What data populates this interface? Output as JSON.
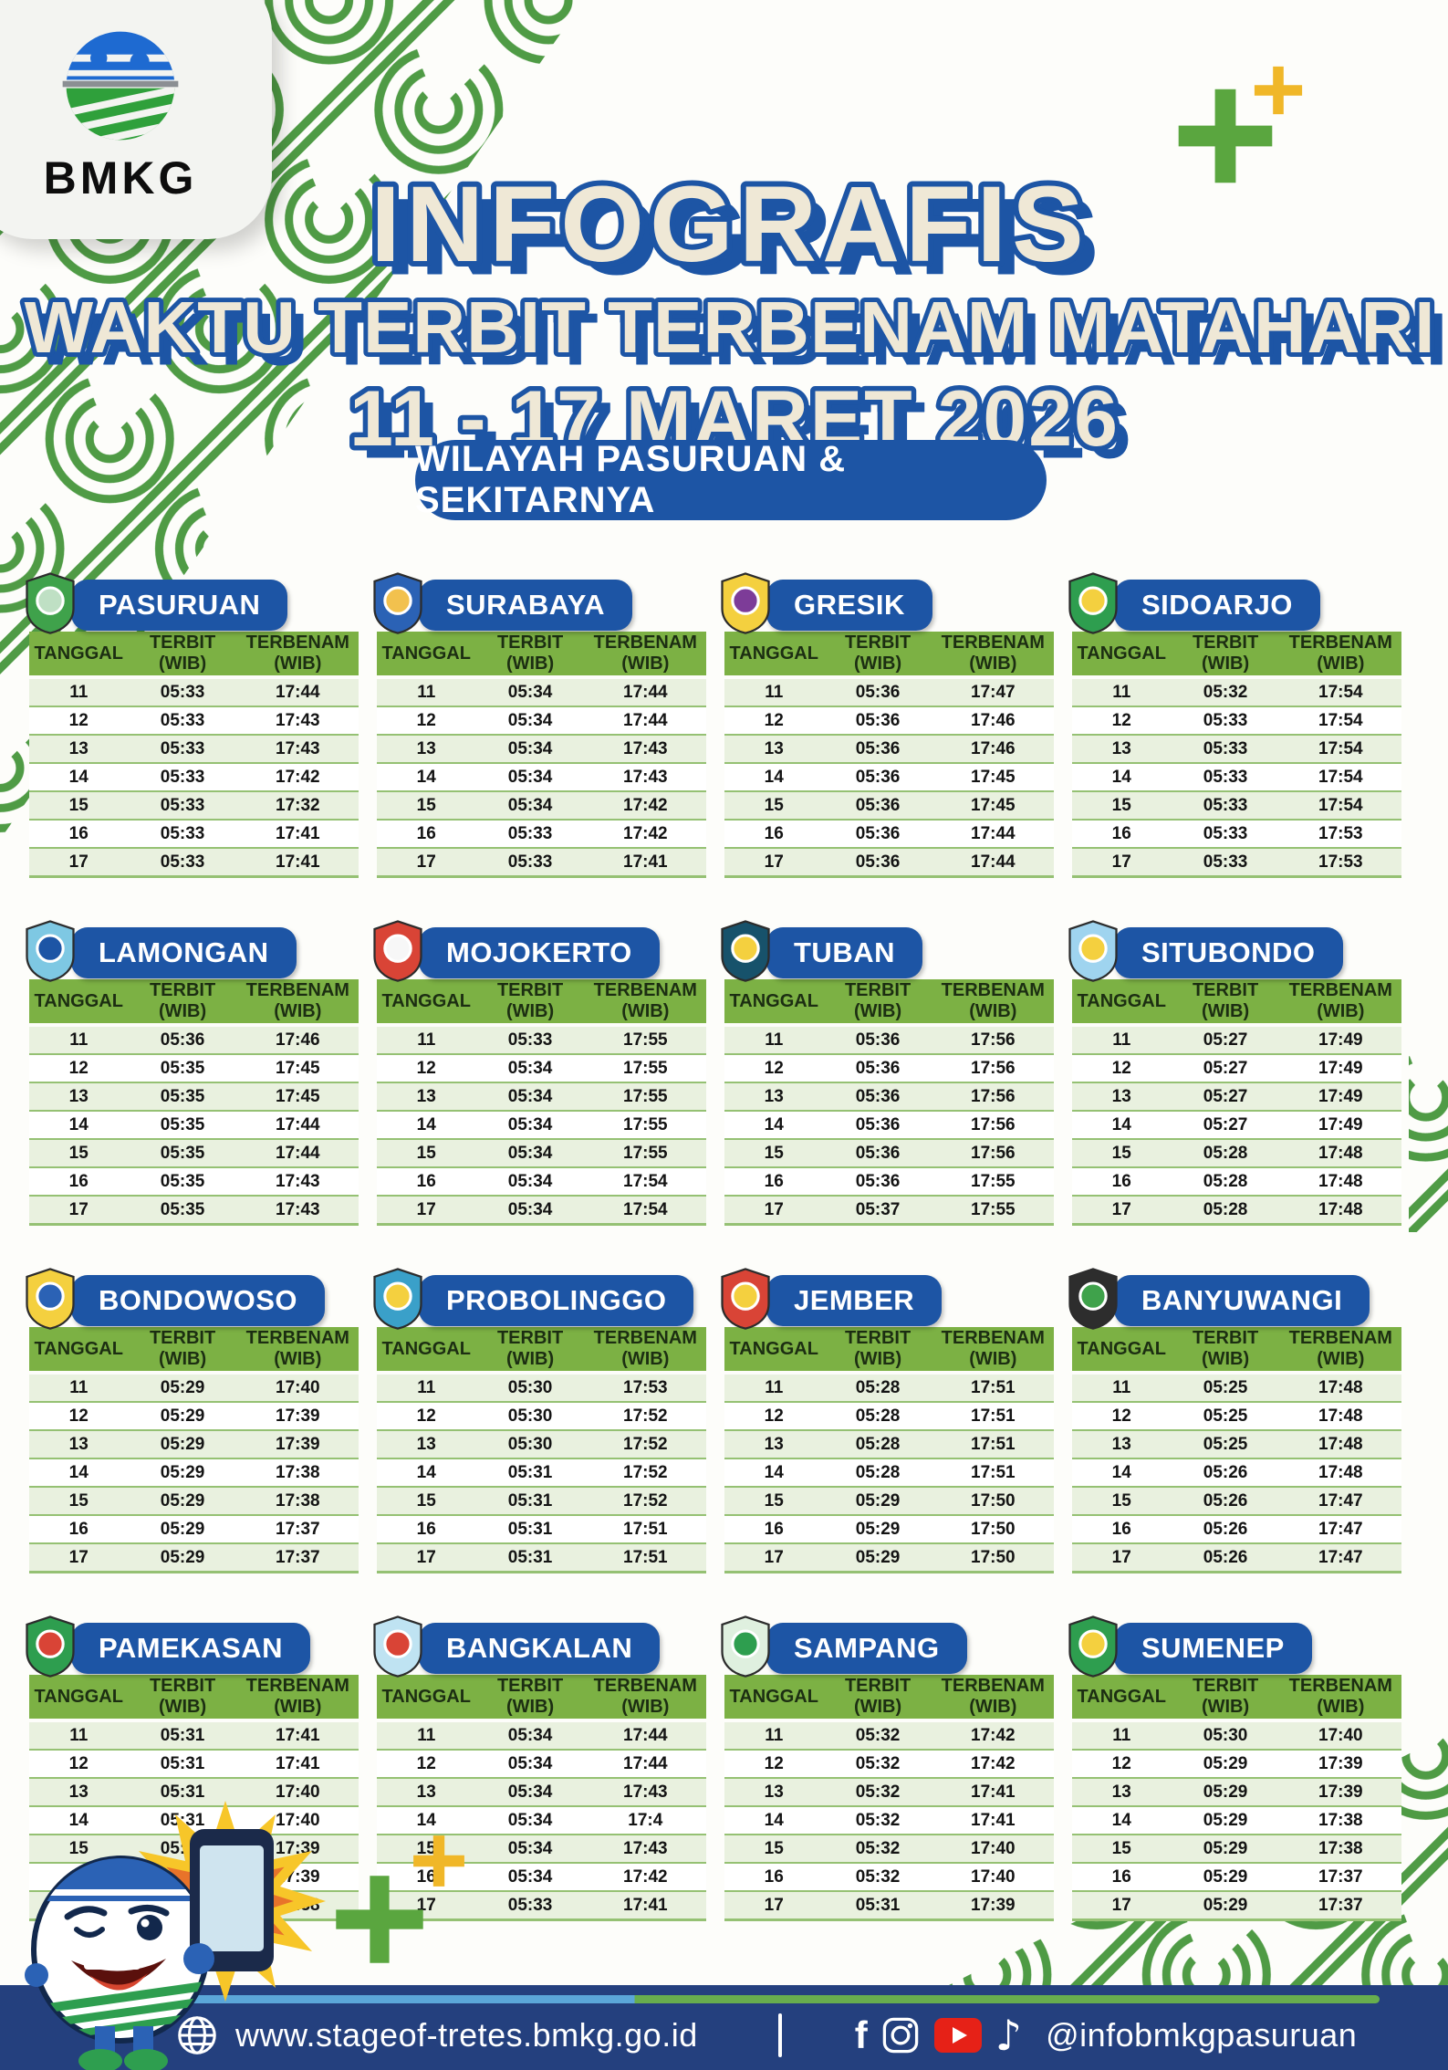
{
  "brand": {
    "logo_text": "BMKG"
  },
  "title": {
    "line1": "INFOGRAFIS",
    "line2": "WAKTU TERBIT TERBENAM MATAHARI",
    "line3": "11 - 17 MARET 2026",
    "subtitle_pill": "WILAYAH PASURUAN & SEKITARNYA"
  },
  "table_headers": {
    "date": "TANGGAL",
    "rise": "TERBIT (WIB)",
    "set": "TERBENAM (WIB)"
  },
  "cities": [
    {
      "name": "PASURUAN",
      "crest_colors": [
        "#3fa24b",
        "#bfe0c4"
      ],
      "rows": [
        [
          "11",
          "05:33",
          "17:44"
        ],
        [
          "12",
          "05:33",
          "17:43"
        ],
        [
          "13",
          "05:33",
          "17:43"
        ],
        [
          "14",
          "05:33",
          "17:42"
        ],
        [
          "15",
          "05:33",
          "17:32"
        ],
        [
          "16",
          "05:33",
          "17:41"
        ],
        [
          "17",
          "05:33",
          "17:41"
        ]
      ]
    },
    {
      "name": "SURABAYA",
      "crest_colors": [
        "#2b62b5",
        "#f2c14e"
      ],
      "rows": [
        [
          "11",
          "05:34",
          "17:44"
        ],
        [
          "12",
          "05:34",
          "17:44"
        ],
        [
          "13",
          "05:34",
          "17:43"
        ],
        [
          "14",
          "05:34",
          "17:43"
        ],
        [
          "15",
          "05:34",
          "17:42"
        ],
        [
          "16",
          "05:33",
          "17:42"
        ],
        [
          "17",
          "05:33",
          "17:41"
        ]
      ]
    },
    {
      "name": "GRESIK",
      "crest_colors": [
        "#f4d03f",
        "#7d3c98"
      ],
      "rows": [
        [
          "11",
          "05:36",
          "17:47"
        ],
        [
          "12",
          "05:36",
          "17:46"
        ],
        [
          "13",
          "05:36",
          "17:46"
        ],
        [
          "14",
          "05:36",
          "17:45"
        ],
        [
          "15",
          "05:36",
          "17:45"
        ],
        [
          "16",
          "05:36",
          "17:44"
        ],
        [
          "17",
          "05:36",
          "17:44"
        ]
      ]
    },
    {
      "name": "SIDOARJO",
      "crest_colors": [
        "#2e9e4f",
        "#f4d03f"
      ],
      "rows": [
        [
          "11",
          "05:32",
          "17:54"
        ],
        [
          "12",
          "05:33",
          "17:54"
        ],
        [
          "13",
          "05:33",
          "17:54"
        ],
        [
          "14",
          "05:33",
          "17:54"
        ],
        [
          "15",
          "05:33",
          "17:54"
        ],
        [
          "16",
          "05:33",
          "17:53"
        ],
        [
          "17",
          "05:33",
          "17:53"
        ]
      ]
    },
    {
      "name": "LAMONGAN",
      "crest_colors": [
        "#7ec8e3",
        "#1d55a5"
      ],
      "rows": [
        [
          "11",
          "05:36",
          "17:46"
        ],
        [
          "12",
          "05:35",
          "17:45"
        ],
        [
          "13",
          "05:35",
          "17:45"
        ],
        [
          "14",
          "05:35",
          "17:44"
        ],
        [
          "15",
          "05:35",
          "17:44"
        ],
        [
          "16",
          "05:35",
          "17:43"
        ],
        [
          "17",
          "05:35",
          "17:43"
        ]
      ]
    },
    {
      "name": "MOJOKERTO",
      "crest_colors": [
        "#d94436",
        "#f7f7f7"
      ],
      "rows": [
        [
          "11",
          "05:33",
          "17:55"
        ],
        [
          "12",
          "05:34",
          "17:55"
        ],
        [
          "13",
          "05:34",
          "17:55"
        ],
        [
          "14",
          "05:34",
          "17:55"
        ],
        [
          "15",
          "05:34",
          "17:55"
        ],
        [
          "16",
          "05:34",
          "17:54"
        ],
        [
          "17",
          "05:34",
          "17:54"
        ]
      ]
    },
    {
      "name": "TUBAN",
      "crest_colors": [
        "#17526b",
        "#f4d03f"
      ],
      "rows": [
        [
          "11",
          "05:36",
          "17:56"
        ],
        [
          "12",
          "05:36",
          "17:56"
        ],
        [
          "13",
          "05:36",
          "17:56"
        ],
        [
          "14",
          "05:36",
          "17:56"
        ],
        [
          "15",
          "05:36",
          "17:56"
        ],
        [
          "16",
          "05:36",
          "17:55"
        ],
        [
          "17",
          "05:37",
          "17:55"
        ]
      ]
    },
    {
      "name": "SITUBONDO",
      "crest_colors": [
        "#9fd4ef",
        "#f4d03f"
      ],
      "rows": [
        [
          "11",
          "05:27",
          "17:49"
        ],
        [
          "12",
          "05:27",
          "17:49"
        ],
        [
          "13",
          "05:27",
          "17:49"
        ],
        [
          "14",
          "05:27",
          "17:49"
        ],
        [
          "15",
          "05:28",
          "17:48"
        ],
        [
          "16",
          "05:28",
          "17:48"
        ],
        [
          "17",
          "05:28",
          "17:48"
        ]
      ]
    },
    {
      "name": "BONDOWOSO",
      "crest_colors": [
        "#f4d03f",
        "#2b62b5"
      ],
      "rows": [
        [
          "11",
          "05:29",
          "17:40"
        ],
        [
          "12",
          "05:29",
          "17:39"
        ],
        [
          "13",
          "05:29",
          "17:39"
        ],
        [
          "14",
          "05:29",
          "17:38"
        ],
        [
          "15",
          "05:29",
          "17:38"
        ],
        [
          "16",
          "05:29",
          "17:37"
        ],
        [
          "17",
          "05:29",
          "17:37"
        ]
      ]
    },
    {
      "name": "PROBOLINGGO",
      "crest_colors": [
        "#3aa0c9",
        "#f4d03f"
      ],
      "rows": [
        [
          "11",
          "05:30",
          "17:53"
        ],
        [
          "12",
          "05:30",
          "17:52"
        ],
        [
          "13",
          "05:30",
          "17:52"
        ],
        [
          "14",
          "05:31",
          "17:52"
        ],
        [
          "15",
          "05:31",
          "17:52"
        ],
        [
          "16",
          "05:31",
          "17:51"
        ],
        [
          "17",
          "05:31",
          "17:51"
        ]
      ]
    },
    {
      "name": "JEMBER",
      "crest_colors": [
        "#d94436",
        "#f4d03f"
      ],
      "rows": [
        [
          "11",
          "05:28",
          "17:51"
        ],
        [
          "12",
          "05:28",
          "17:51"
        ],
        [
          "13",
          "05:28",
          "17:51"
        ],
        [
          "14",
          "05:28",
          "17:51"
        ],
        [
          "15",
          "05:29",
          "17:50"
        ],
        [
          "16",
          "05:29",
          "17:50"
        ],
        [
          "17",
          "05:29",
          "17:50"
        ]
      ]
    },
    {
      "name": "BANYUWANGI",
      "crest_colors": [
        "#2d2d2d",
        "#3fa24b"
      ],
      "rows": [
        [
          "11",
          "05:25",
          "17:48"
        ],
        [
          "12",
          "05:25",
          "17:48"
        ],
        [
          "13",
          "05:25",
          "17:48"
        ],
        [
          "14",
          "05:26",
          "17:48"
        ],
        [
          "15",
          "05:26",
          "17:47"
        ],
        [
          "16",
          "05:26",
          "17:47"
        ],
        [
          "17",
          "05:26",
          "17:47"
        ]
      ]
    },
    {
      "name": "PAMEKASAN",
      "crest_colors": [
        "#2e9e4f",
        "#d94436"
      ],
      "rows": [
        [
          "11",
          "05:31",
          "17:41"
        ],
        [
          "12",
          "05:31",
          "17:41"
        ],
        [
          "13",
          "05:31",
          "17:40"
        ],
        [
          "14",
          "05:31",
          "17:40"
        ],
        [
          "15",
          "05:31",
          "17:39"
        ],
        [
          "16",
          "05:31",
          "17:39"
        ],
        [
          "17",
          "05:31",
          "17:38"
        ]
      ]
    },
    {
      "name": "BANGKALAN",
      "crest_colors": [
        "#bfe3f2",
        "#d94436"
      ],
      "rows": [
        [
          "11",
          "05:34",
          "17:44"
        ],
        [
          "12",
          "05:34",
          "17:44"
        ],
        [
          "13",
          "05:34",
          "17:43"
        ],
        [
          "14",
          "05:34",
          "17:4"
        ],
        [
          "15",
          "05:34",
          "17:43"
        ],
        [
          "16",
          "05:34",
          "17:42"
        ],
        [
          "17",
          "05:33",
          "17:41"
        ]
      ]
    },
    {
      "name": "SAMPANG",
      "crest_colors": [
        "#dff0df",
        "#2e9e4f"
      ],
      "rows": [
        [
          "11",
          "05:32",
          "17:42"
        ],
        [
          "12",
          "05:32",
          "17:42"
        ],
        [
          "13",
          "05:32",
          "17:41"
        ],
        [
          "14",
          "05:32",
          "17:41"
        ],
        [
          "15",
          "05:32",
          "17:40"
        ],
        [
          "16",
          "05:32",
          "17:40"
        ],
        [
          "17",
          "05:31",
          "17:39"
        ]
      ]
    },
    {
      "name": "SUMENEP",
      "crest_colors": [
        "#2e9e4f",
        "#f4d03f"
      ],
      "rows": [
        [
          "11",
          "05:30",
          "17:40"
        ],
        [
          "12",
          "05:29",
          "17:39"
        ],
        [
          "13",
          "05:29",
          "17:39"
        ],
        [
          "14",
          "05:29",
          "17:38"
        ],
        [
          "15",
          "05:29",
          "17:38"
        ],
        [
          "16",
          "05:29",
          "17:37"
        ],
        [
          "17",
          "05:29",
          "17:37"
        ]
      ]
    }
  ],
  "footer": {
    "website": "www.stageof-tretes.bmkg.go.id",
    "divider": "|",
    "handle": "@infobmkgpasuruan",
    "icons": [
      "globe-icon",
      "facebook-icon",
      "instagram-icon",
      "youtube-icon",
      "tiktok-icon"
    ]
  },
  "colors": {
    "primary_blue": "#1d55a5",
    "header_green": "#7cb144",
    "row_tint": "#e9f1df",
    "separator_green": "#95c173",
    "footer_blue": "#24407e",
    "stripe_blue": "#5ba7d9",
    "stripe_green": "#68ae4e",
    "pattern_green": "#4f9b45",
    "title_cream": "#efe8d6",
    "plus_green": "#5aa63f",
    "plus_yellow": "#f0b728",
    "youtube_red": "#e62117"
  }
}
